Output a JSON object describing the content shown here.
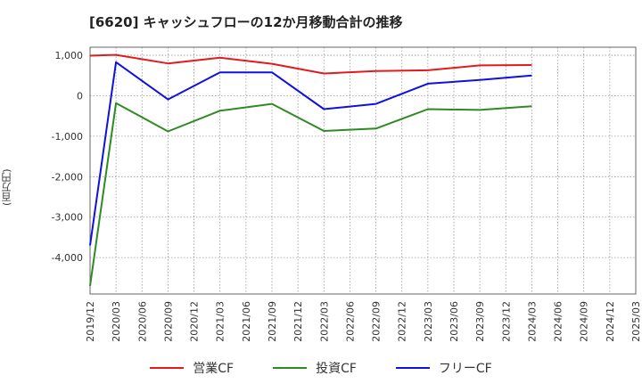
{
  "chart_data": {
    "type": "line",
    "title": "[6620]  キャッシュフローの12か月移動合計の推移",
    "ylabel": "(百万円)",
    "xlabel": "",
    "ylim": [
      -4900,
      1200
    ],
    "yticks": [
      1000,
      0,
      -1000,
      -2000,
      -3000,
      -4000
    ],
    "ytick_labels": [
      "1,000",
      "0",
      "-1,000",
      "-2,000",
      "-3,000",
      "-4,000"
    ],
    "categories": [
      "2019/12",
      "2020/03",
      "2020/06",
      "2020/09",
      "2020/12",
      "2021/03",
      "2021/06",
      "2021/09",
      "2021/12",
      "2022/03",
      "2022/06",
      "2022/09",
      "2022/12",
      "2023/03",
      "2023/06",
      "2023/09",
      "2023/12",
      "2024/03",
      "2024/06",
      "2024/09",
      "2024/12",
      "2025/03"
    ],
    "grid": true,
    "legend_position": "bottom",
    "series": [
      {
        "name": "営業CF",
        "color": "#e31a1c",
        "values": [
          990,
          1010,
          null,
          800,
          null,
          940,
          null,
          790,
          null,
          550,
          null,
          610,
          null,
          630,
          null,
          750,
          null,
          760,
          null,
          null,
          null,
          null
        ]
      },
      {
        "name": "投資CF",
        "color": "#2e8b22",
        "values": [
          -4700,
          -180,
          null,
          -880,
          null,
          -370,
          null,
          -200,
          null,
          -870,
          null,
          -810,
          null,
          -330,
          null,
          -350,
          null,
          -260,
          null,
          null,
          null,
          null
        ]
      },
      {
        "name": "フリーCF",
        "color": "#1010e0",
        "values": [
          -3700,
          830,
          null,
          -90,
          null,
          580,
          null,
          580,
          null,
          -330,
          null,
          -200,
          null,
          300,
          null,
          390,
          null,
          500,
          null,
          null,
          null,
          null
        ]
      }
    ]
  }
}
